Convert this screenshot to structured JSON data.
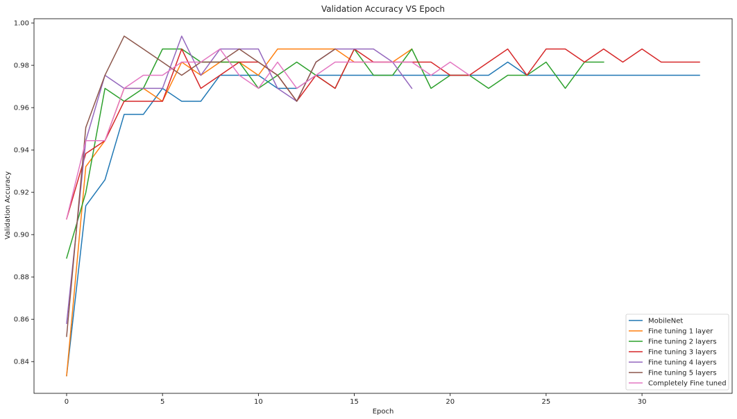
{
  "chart_data": {
    "type": "line",
    "title": "Validation Accuracy VS Epoch",
    "xlabel": "Epoch",
    "ylabel": "Validation Accuracy",
    "xlim": [
      -1.7,
      34.7
    ],
    "ylim": [
      0.825,
      1.002
    ],
    "xticks": [
      0,
      5,
      10,
      15,
      20,
      25,
      30
    ],
    "yticks": [
      0.84,
      0.86,
      0.88,
      0.9,
      0.92,
      0.94,
      0.96,
      0.98,
      1.0
    ],
    "ytick_labels": [
      "0.84",
      "0.86",
      "0.88",
      "0.90",
      "0.92",
      "0.94",
      "0.96",
      "0.98",
      "1.00"
    ],
    "grid": false,
    "legend_position": "bottom-right",
    "series": [
      {
        "name": "MobileNet",
        "color": "#1f77b4",
        "values": [
          0.8333,
          0.9136,
          0.9259,
          0.9568,
          0.9568,
          0.9691,
          0.963,
          0.963,
          0.9753,
          0.9753,
          0.9753,
          0.9691,
          0.9691,
          0.9753,
          0.9753,
          0.9753,
          0.9753,
          0.9753,
          0.9753,
          0.9753,
          0.9753,
          0.9753,
          0.9753,
          0.9815,
          0.9753,
          0.9753,
          0.9753,
          0.9753,
          0.9753,
          0.9753,
          0.9753,
          0.9753,
          0.9753,
          0.9753
        ]
      },
      {
        "name": "Fine tuning 1 layer",
        "color": "#ff7f0e",
        "values": [
          0.8333,
          0.9321,
          0.9444,
          0.9691,
          0.9691,
          0.963,
          0.9815,
          0.9753,
          0.9815,
          0.9815,
          0.9753,
          0.9877,
          0.9877,
          0.9877,
          0.9877,
          0.9815,
          0.9815,
          0.9815,
          0.9877
        ]
      },
      {
        "name": "Fine tuning 2 layers",
        "color": "#2ca02c",
        "values": [
          0.8889,
          0.9198,
          0.9691,
          0.963,
          0.9691,
          0.9877,
          0.9877,
          0.9815,
          0.9815,
          0.9815,
          0.9691,
          0.9753,
          0.9815,
          0.9753,
          0.9691,
          0.9877,
          0.9753,
          0.9753,
          0.9877,
          0.9691,
          0.9753,
          0.9753,
          0.9691,
          0.9753,
          0.9753,
          0.9815,
          0.9691,
          0.9815,
          0.9815
        ]
      },
      {
        "name": "Fine tuning 3 layers",
        "color": "#d62728",
        "values": [
          0.9074,
          0.9383,
          0.9444,
          0.963,
          0.963,
          0.963,
          0.9877,
          0.9691,
          0.9753,
          0.9815,
          0.9815,
          0.9753,
          0.963,
          0.9753,
          0.9691,
          0.9877,
          0.9815,
          0.9815,
          0.9815,
          0.9815,
          0.9753,
          0.9753,
          0.9815,
          0.9877,
          0.9753,
          0.9877,
          0.9877,
          0.9815,
          0.9877,
          0.9815,
          0.9877,
          0.9815,
          0.9815,
          0.9815
        ]
      },
      {
        "name": "Fine tuning 4 layers",
        "color": "#9467bd",
        "values": [
          0.858,
          0.9444,
          0.9753,
          0.9691,
          0.9691,
          0.9691,
          0.9938,
          0.9753,
          0.9877,
          0.9877,
          0.9877,
          0.9691,
          0.963,
          0.9815,
          0.9877,
          0.9877,
          0.9877,
          0.9815,
          0.9691
        ]
      },
      {
        "name": "Fine tuning 5 layers",
        "color": "#8c564b",
        "values": [
          0.8519,
          0.9506,
          0.9753,
          0.9938,
          0.9877,
          0.9815,
          0.9753,
          0.9815,
          0.9815,
          0.9877,
          0.9815,
          0.9753,
          0.963,
          0.9815,
          0.9877
        ]
      },
      {
        "name": "Completely Fine tuned",
        "color": "#e377c2",
        "values": [
          0.9074,
          0.9444,
          0.9444,
          0.9691,
          0.9753,
          0.9753,
          0.9815,
          0.9815,
          0.9877,
          0.9753,
          0.9691,
          0.9815,
          0.9691,
          0.9753,
          0.9815,
          0.9815,
          0.9815,
          0.9815,
          0.9815,
          0.9753,
          0.9815,
          0.9753
        ]
      }
    ]
  }
}
